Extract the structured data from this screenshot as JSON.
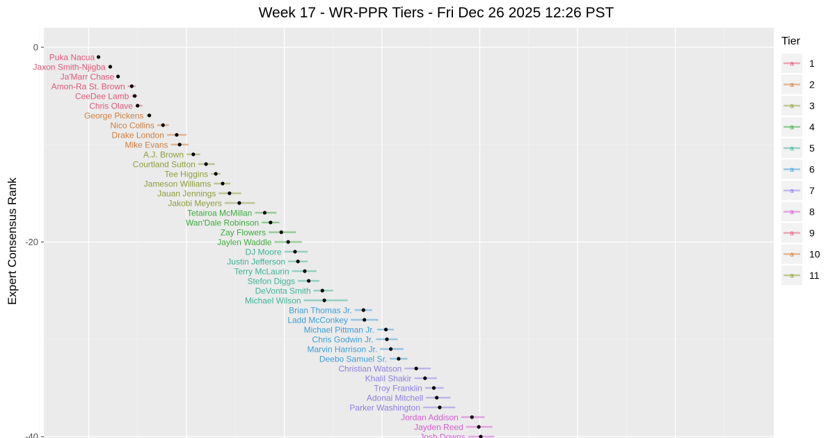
{
  "chart_data": {
    "type": "scatter",
    "title": "Week 17 - WR-PPR Tiers - Fri Dec 26 2025 12:26 PST",
    "ylabel": "Expert Consensus Rank",
    "ylim": [
      0,
      40
    ],
    "y_reversed": true,
    "y_ticks": [
      0,
      -20,
      -40
    ],
    "grid": true,
    "legend": {
      "title": "Tier",
      "position": "right",
      "key_glyph": "a"
    },
    "tiers": [
      {
        "tier": "1",
        "color": "#E2577A"
      },
      {
        "tier": "2",
        "color": "#CF7E3D"
      },
      {
        "tier": "3",
        "color": "#8C9F3C"
      },
      {
        "tier": "4",
        "color": "#3DAA3D"
      },
      {
        "tier": "5",
        "color": "#3DB396"
      },
      {
        "tier": "6",
        "color": "#3D9ED6"
      },
      {
        "tier": "7",
        "color": "#8C7FE3"
      },
      {
        "tier": "8",
        "color": "#D65CD1"
      },
      {
        "tier": "9",
        "color": "#E2577A"
      },
      {
        "tier": "10",
        "color": "#CF7E3D"
      },
      {
        "tier": "11",
        "color": "#8C9F3C"
      }
    ],
    "players": [
      {
        "name": "Puka Nacua",
        "tier": "1",
        "rank": 1,
        "avg": 1.0,
        "lo": 0.9,
        "hi": 1.1
      },
      {
        "name": "Jaxon Smith-Njigba",
        "tier": "1",
        "rank": 2,
        "avg": 2.2,
        "lo": 2.0,
        "hi": 2.4
      },
      {
        "name": "Ja'Marr Chase",
        "tier": "1",
        "rank": 3,
        "avg": 3.0,
        "lo": 2.9,
        "hi": 3.1
      },
      {
        "name": "Amon-Ra St. Brown",
        "tier": "1",
        "rank": 4,
        "avg": 4.4,
        "lo": 4.0,
        "hi": 4.8
      },
      {
        "name": "CeeDee Lamb",
        "tier": "1",
        "rank": 5,
        "avg": 4.7,
        "lo": 4.4,
        "hi": 5.0
      },
      {
        "name": "Chris Olave",
        "tier": "1",
        "rank": 6,
        "avg": 5.0,
        "lo": 4.8,
        "hi": 5.5
      },
      {
        "name": "George Pickens",
        "tier": "2",
        "rank": 7,
        "avg": 6.2,
        "lo": 5.9,
        "hi": 6.4
      },
      {
        "name": "Nico Collins",
        "tier": "2",
        "rank": 8,
        "avg": 7.6,
        "lo": 7.0,
        "hi": 8.2
      },
      {
        "name": "Drake London",
        "tier": "2",
        "rank": 9,
        "avg": 9.0,
        "lo": 8.0,
        "hi": 10.0
      },
      {
        "name": "Mike Evans",
        "tier": "2",
        "rank": 10,
        "avg": 9.3,
        "lo": 8.4,
        "hi": 10.2
      },
      {
        "name": "A.J. Brown",
        "tier": "3",
        "rank": 11,
        "avg": 10.7,
        "lo": 10.0,
        "hi": 11.4
      },
      {
        "name": "Courtland Sutton",
        "tier": "3",
        "rank": 12,
        "avg": 12.0,
        "lo": 11.2,
        "hi": 12.9
      },
      {
        "name": "Tee Higgins",
        "tier": "3",
        "rank": 13,
        "avg": 13.0,
        "lo": 12.5,
        "hi": 13.5
      },
      {
        "name": "Jameson Williams",
        "tier": "3",
        "rank": 14,
        "avg": 13.7,
        "lo": 12.8,
        "hi": 14.5
      },
      {
        "name": "Jauan Jennings",
        "tier": "3",
        "rank": 15,
        "avg": 14.4,
        "lo": 13.3,
        "hi": 15.6
      },
      {
        "name": "Jakobi Meyers",
        "tier": "3",
        "rank": 16,
        "avg": 15.4,
        "lo": 13.9,
        "hi": 17.0
      },
      {
        "name": "Tetairoa McMillan",
        "tier": "4",
        "rank": 17,
        "avg": 18.0,
        "lo": 17.0,
        "hi": 19.2
      },
      {
        "name": "Wan'Dale Robinson",
        "tier": "4",
        "rank": 18,
        "avg": 18.6,
        "lo": 17.7,
        "hi": 19.5
      },
      {
        "name": "Zay Flowers",
        "tier": "4",
        "rank": 19,
        "avg": 19.7,
        "lo": 18.4,
        "hi": 21.2
      },
      {
        "name": "Jaylen Waddle",
        "tier": "4",
        "rank": 20,
        "avg": 20.4,
        "lo": 19.0,
        "hi": 21.8
      },
      {
        "name": "DJ Moore",
        "tier": "5",
        "rank": 21,
        "avg": 21.1,
        "lo": 20.0,
        "hi": 22.4
      },
      {
        "name": "Justin Jefferson",
        "tier": "5",
        "rank": 22,
        "avg": 21.4,
        "lo": 20.4,
        "hi": 22.4
      },
      {
        "name": "Terry McLaurin",
        "tier": "5",
        "rank": 23,
        "avg": 22.1,
        "lo": 20.8,
        "hi": 23.3
      },
      {
        "name": "Stefon Diggs",
        "tier": "5",
        "rank": 24,
        "avg": 22.5,
        "lo": 21.4,
        "hi": 23.6
      },
      {
        "name": "DeVonta Smith",
        "tier": "5",
        "rank": 25,
        "avg": 23.9,
        "lo": 23.0,
        "hi": 25.0
      },
      {
        "name": "Michael Wilson",
        "tier": "5",
        "rank": 26,
        "avg": 24.1,
        "lo": 22.0,
        "hi": 26.5
      },
      {
        "name": "Brian Thomas Jr.",
        "tier": "6",
        "rank": 27,
        "avg": 28.1,
        "lo": 27.2,
        "hi": 29.0
      },
      {
        "name": "Ladd McConkey",
        "tier": "6",
        "rank": 28,
        "avg": 28.2,
        "lo": 26.8,
        "hi": 29.6
      },
      {
        "name": "Michael Pittman Jr.",
        "tier": "6",
        "rank": 29,
        "avg": 30.4,
        "lo": 29.5,
        "hi": 31.2
      },
      {
        "name": "Chris Godwin Jr.",
        "tier": "6",
        "rank": 30,
        "avg": 30.5,
        "lo": 29.4,
        "hi": 31.6
      },
      {
        "name": "Marvin Harrison Jr.",
        "tier": "6",
        "rank": 31,
        "avg": 30.9,
        "lo": 29.8,
        "hi": 32.2
      },
      {
        "name": "Deebo Samuel Sr.",
        "tier": "6",
        "rank": 32,
        "avg": 31.7,
        "lo": 30.8,
        "hi": 32.6
      },
      {
        "name": "Christian Watson",
        "tier": "7",
        "rank": 33,
        "avg": 33.5,
        "lo": 32.3,
        "hi": 35.0
      },
      {
        "name": "Khalil Shakir",
        "tier": "7",
        "rank": 34,
        "avg": 34.4,
        "lo": 33.3,
        "hi": 35.6
      },
      {
        "name": "Troy Franklin",
        "tier": "7",
        "rank": 35,
        "avg": 35.3,
        "lo": 34.4,
        "hi": 36.3
      },
      {
        "name": "Adonai Mitchell",
        "tier": "7",
        "rank": 36,
        "avg": 35.6,
        "lo": 34.5,
        "hi": 37.0
      },
      {
        "name": "Parker Washington",
        "tier": "7",
        "rank": 37,
        "avg": 35.9,
        "lo": 34.2,
        "hi": 37.5
      },
      {
        "name": "Jordan Addison",
        "tier": "8",
        "rank": 38,
        "avg": 39.2,
        "lo": 38.1,
        "hi": 40.5
      },
      {
        "name": "Jayden Reed",
        "tier": "8",
        "rank": 39,
        "avg": 39.9,
        "lo": 38.6,
        "hi": 41.3
      },
      {
        "name": "Josh Downs",
        "tier": "8",
        "rank": 40,
        "avg": 40.1,
        "lo": 38.8,
        "hi": 41.5
      }
    ]
  }
}
